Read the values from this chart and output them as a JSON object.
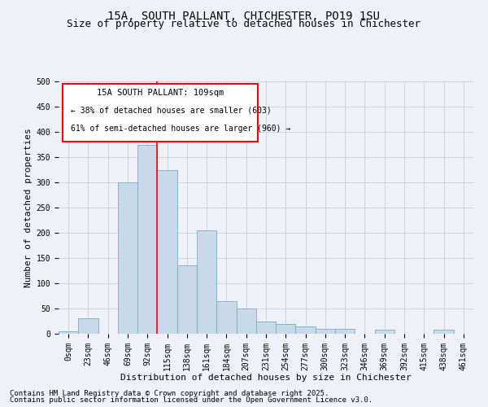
{
  "title_line1": "15A, SOUTH PALLANT, CHICHESTER, PO19 1SU",
  "title_line2": "Size of property relative to detached houses in Chichester",
  "xlabel": "Distribution of detached houses by size in Chichester",
  "ylabel": "Number of detached properties",
  "bar_color": "#c8daea",
  "bar_edge_color": "#7aaac8",
  "background_color": "#eef2f8",
  "grid_color": "#c0cce0",
  "categories": [
    "0sqm",
    "23sqm",
    "46sqm",
    "69sqm",
    "92sqm",
    "115sqm",
    "138sqm",
    "161sqm",
    "184sqm",
    "207sqm",
    "231sqm",
    "254sqm",
    "277sqm",
    "300sqm",
    "323sqm",
    "346sqm",
    "369sqm",
    "392sqm",
    "415sqm",
    "438sqm",
    "461sqm"
  ],
  "values": [
    5,
    30,
    0,
    300,
    375,
    325,
    135,
    205,
    65,
    50,
    25,
    20,
    15,
    10,
    10,
    0,
    8,
    0,
    0,
    8,
    0
  ],
  "red_line_x": 4.5,
  "ann_title": "15A SOUTH PALLANT: 109sqm",
  "ann_line2": "← 38% of detached houses are smaller (603)",
  "ann_line3": "61% of semi-detached houses are larger (960) →",
  "footer_line1": "Contains HM Land Registry data © Crown copyright and database right 2025.",
  "footer_line2": "Contains public sector information licensed under the Open Government Licence v3.0.",
  "title_fontsize": 10,
  "subtitle_fontsize": 9,
  "axis_label_fontsize": 8,
  "tick_fontsize": 7,
  "annotation_fontsize": 7.5,
  "footer_fontsize": 6.5,
  "ylim_max": 500,
  "yticks": [
    0,
    50,
    100,
    150,
    200,
    250,
    300,
    350,
    400,
    450,
    500
  ]
}
